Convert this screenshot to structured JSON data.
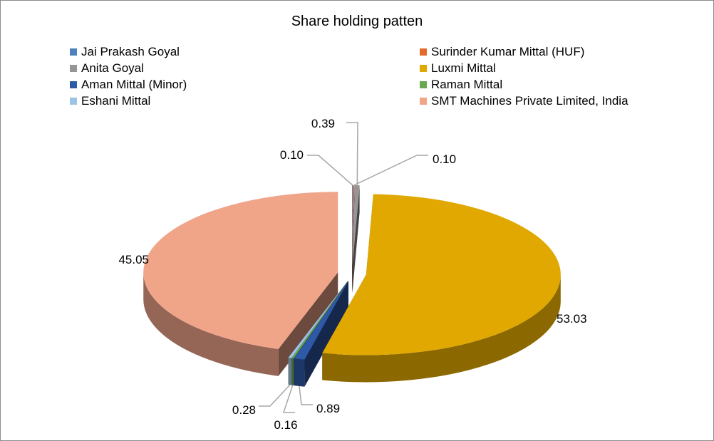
{
  "chart_data": {
    "type": "pie",
    "style": "3D exploded pie",
    "title": "Share holding patten",
    "legend_position": "top",
    "series": [
      {
        "name": "Jai Prakash Goyal",
        "value": 0.1,
        "label": "0.10",
        "color": "#4f81bd"
      },
      {
        "name": "Surinder Kumar Mittal (HUF)",
        "value": 0.1,
        "label": "0.10",
        "color": "#e36c2b"
      },
      {
        "name": "Anita Goyal",
        "value": 0.39,
        "label": "0.39",
        "color": "#969696"
      },
      {
        "name": "Luxmi Mittal",
        "value": 53.03,
        "label": "53.03",
        "color": "#e0a800"
      },
      {
        "name": "Aman Mittal (Minor)",
        "value": 0.89,
        "label": "0.89",
        "color": "#2e59a7"
      },
      {
        "name": "Raman Mittal",
        "value": 0.16,
        "label": "0.16",
        "color": "#6aa84f"
      },
      {
        "name": "Eshani Mittal",
        "value": 0.28,
        "label": "0.28",
        "color": "#9dc3e6"
      },
      {
        "name": "SMT Machines Private Limited, India",
        "value": 45.05,
        "label": "45.05",
        "color": "#f0a589"
      }
    ]
  }
}
